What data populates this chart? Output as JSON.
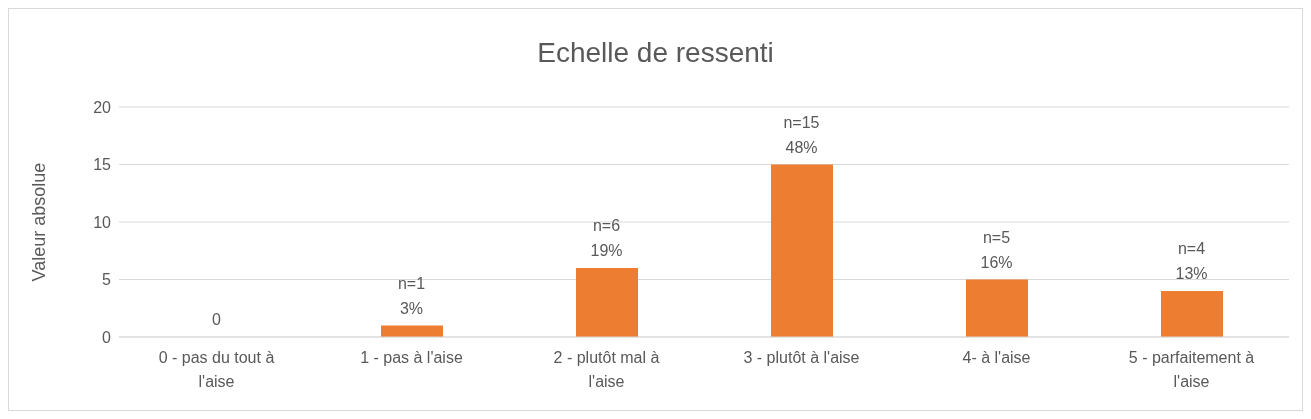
{
  "chart_data": {
    "type": "bar",
    "title": "Echelle de ressenti",
    "ylabel": "Valeur absolue",
    "categories": [
      "0 - pas du tout à l'aise",
      "1 - pas à l'aise",
      "2 - plutôt mal à l'aise",
      "3 - plutôt à l'aise",
      "4- à l'aise",
      "5 - parfaitement à l'aise"
    ],
    "values": [
      0,
      1,
      6,
      15,
      5,
      4
    ],
    "value_labels": [
      "0",
      "n=1\n3%",
      "n=6\n19%",
      "n=15\n48%",
      "n=5\n16%",
      "n=4\n13%"
    ],
    "color": "#ed7d31",
    "ylim": [
      0,
      20
    ],
    "yticks": [
      0,
      5,
      10,
      15,
      20
    ],
    "grid": "y",
    "legend": false
  }
}
